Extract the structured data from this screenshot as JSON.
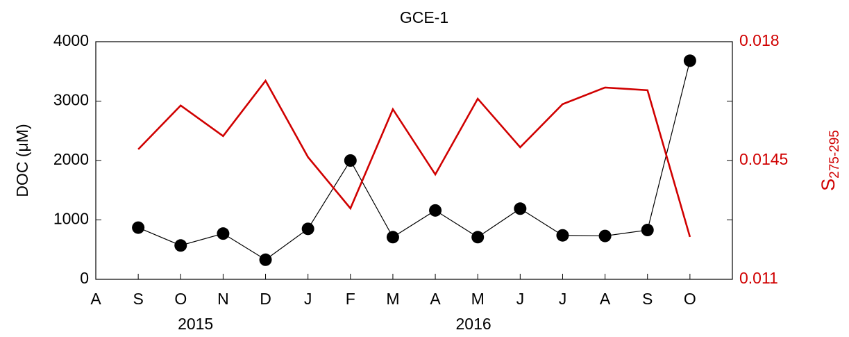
{
  "chart_data": {
    "type": "line",
    "title": "GCE-1",
    "categories": [
      "A",
      "S",
      "O",
      "N",
      "D",
      "J",
      "F",
      "M",
      "A",
      "M",
      "J",
      "J",
      "A",
      "S",
      "O"
    ],
    "year_labels": [
      "2015",
      "2016"
    ],
    "ylabel": "DOC (μM)",
    "y2label": {
      "main": "S",
      "sub": "275-295"
    },
    "series": [
      {
        "name": "DOC",
        "color": "#000000",
        "marker": "circle",
        "axis": "y",
        "values": [
          null,
          870,
          570,
          770,
          330,
          850,
          2000,
          710,
          1160,
          710,
          1190,
          740,
          730,
          830,
          3680
        ]
      },
      {
        "name": "S275-295",
        "color": "#d00000",
        "axis": "y2",
        "values": [
          null,
          0.01483,
          0.01612,
          0.01522,
          0.01685,
          0.0146,
          0.01309,
          0.01601,
          0.01409,
          0.01632,
          0.01489,
          0.01616,
          0.01665,
          0.01657,
          0.01225
        ]
      }
    ],
    "ylim": [
      0,
      4000
    ],
    "yticks": [
      0,
      1000,
      2000,
      3000,
      4000
    ],
    "y2lim": [
      0.011,
      0.018
    ],
    "y2ticks": [
      0.011,
      0.0145,
      0.018
    ],
    "y2color": "#d00000"
  }
}
